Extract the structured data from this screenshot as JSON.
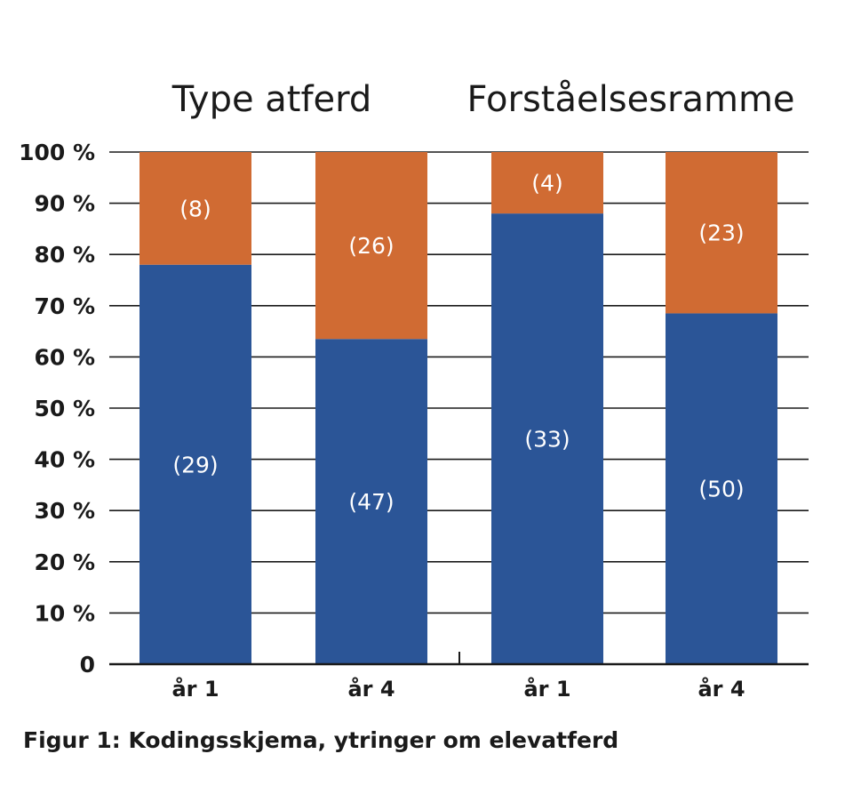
{
  "caption": "Figur 1: Kodingsskjema, ytringer om elevatferd",
  "chart_data": {
    "type": "bar",
    "stacked": true,
    "groups": [
      {
        "title": "Type atferd",
        "categories": [
          "år 1",
          "år 4"
        ]
      },
      {
        "title": "Forståelsesramme",
        "categories": [
          "år 1",
          "år 4"
        ]
      }
    ],
    "categories": [
      "år 1",
      "år 4",
      "år 1",
      "år 4"
    ],
    "series": [
      {
        "values": [
          78,
          63.5,
          88,
          68.5
        ],
        "labels": [
          "(29)",
          "(47)",
          "(33)",
          "(50)"
        ],
        "color": "#2b5597"
      },
      {
        "values": [
          22,
          36.5,
          12,
          31.5
        ],
        "labels": [
          "(8)",
          "(26)",
          "(4)",
          "(23)"
        ],
        "color": "#d06b33"
      }
    ],
    "yticks": [
      "0",
      "10 %",
      "20 %",
      "30 %",
      "40 %",
      "50 %",
      "60 %",
      "70 %",
      "80 %",
      "90 %",
      "100 %"
    ],
    "ylim": [
      0,
      100
    ],
    "grid": true,
    "legend": "none"
  }
}
